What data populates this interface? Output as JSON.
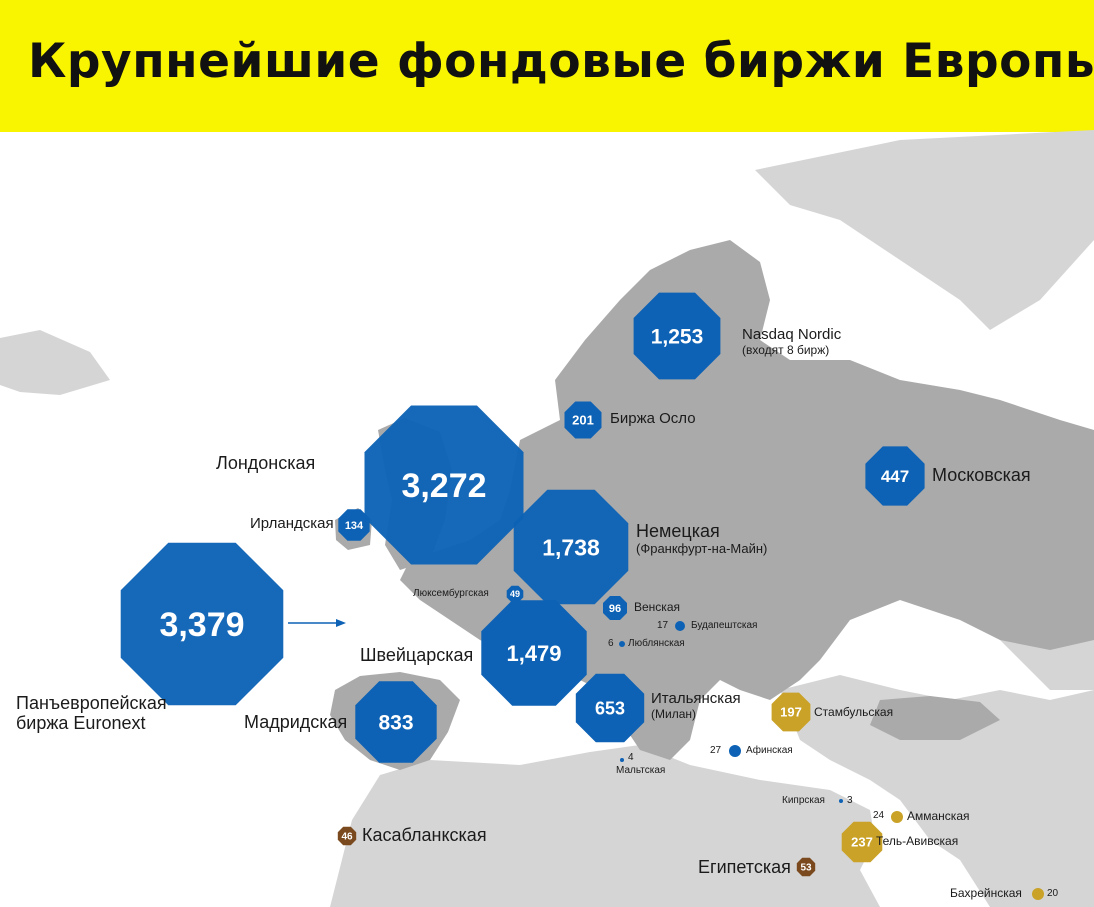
{
  "title": "Крупнейшие фондовые биржи Европы",
  "colors": {
    "banner": "#f9f500",
    "land": "#d3d3d3",
    "europe": "#a9a9a9",
    "blue": "#0d62b5",
    "gold": "#c9a227",
    "brown": "#7a4a1e"
  },
  "exchanges": [
    {
      "value": "3,379",
      "label": "Панъевропейская\nбиржа Euronext",
      "color": "blue"
    },
    {
      "value": "3,272",
      "label": "Лондонская",
      "color": "blue"
    },
    {
      "value": "1,738",
      "label": "Немецкая",
      "sublabel": "(Франкфурт-на-Майн)",
      "color": "blue"
    },
    {
      "value": "1,479",
      "label": "Швейцарская",
      "color": "blue"
    },
    {
      "value": "1,253",
      "label": "Nasdaq Nordic",
      "sublabel": "(входят 8 бирж)",
      "color": "blue"
    },
    {
      "value": "833",
      "label": "Мадридская",
      "color": "blue"
    },
    {
      "value": "653",
      "label": "Итальянская",
      "sublabel": "(Милан)",
      "color": "blue"
    },
    {
      "value": "447",
      "label": "Московская",
      "color": "blue"
    },
    {
      "value": "237",
      "label": "Тель-Авивская",
      "color": "gold"
    },
    {
      "value": "201",
      "label": "Биржа Осло",
      "color": "blue"
    },
    {
      "value": "197",
      "label": "Стамбульская",
      "color": "gold"
    },
    {
      "value": "134",
      "label": "Ирландская",
      "color": "blue"
    },
    {
      "value": "96",
      "label": "Венская",
      "color": "blue"
    },
    {
      "value": "53",
      "label": "Египетская",
      "color": "brown"
    },
    {
      "value": "49",
      "label": "Люксембургская",
      "color": "blue"
    },
    {
      "value": "46",
      "label": "Касабланкская",
      "color": "brown"
    },
    {
      "value": "27",
      "label": "Афинская",
      "color": "blue"
    },
    {
      "value": "24",
      "label": "Амманская",
      "color": "gold"
    },
    {
      "value": "20",
      "label": "Бахрейнская",
      "color": "gold"
    },
    {
      "value": "17",
      "label": "Будапештская",
      "color": "blue"
    },
    {
      "value": "6",
      "label": "Люблянская",
      "color": "blue"
    },
    {
      "value": "4",
      "label": "Мальтская",
      "color": "blue"
    },
    {
      "value": "3",
      "label": "Кипрская",
      "color": "blue"
    }
  ]
}
